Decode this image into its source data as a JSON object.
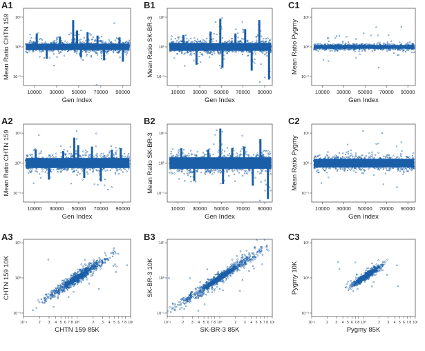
{
  "colors": {
    "points": "#1a5ea8",
    "axis": "#555555",
    "text": "#222222"
  },
  "chart_data": [
    {
      "id": "A1",
      "type": "scatter",
      "panel_label": "A1",
      "xlabel": "Gen Index",
      "ylabel": "Mean Ratio CHTN 159",
      "xticks": [
        "10000",
        "30000",
        "50000",
        "70000",
        "90000"
      ],
      "xtick_values": [
        10000,
        30000,
        50000,
        70000,
        90000
      ],
      "yticks": [
        "10⁻¹",
        "10⁰",
        "10¹"
      ],
      "yscale": "log",
      "xlim": [
        0,
        97000
      ],
      "ylim": [
        -1.3,
        1.3
      ],
      "points": {
        "x": [
          2000,
          96000
        ],
        "y_center": 0,
        "spread": 0.09
      },
      "spikes": [
        [
          12000,
          0.45
        ],
        [
          21000,
          -0.4
        ],
        [
          33000,
          0.35
        ],
        [
          45000,
          0.9
        ],
        [
          48500,
          0.55
        ],
        [
          52000,
          -0.35
        ],
        [
          58000,
          0.5
        ],
        [
          67000,
          0.38
        ],
        [
          73000,
          -0.45
        ],
        [
          87000,
          0.32
        ],
        [
          90000,
          -0.5
        ]
      ]
    },
    {
      "id": "B1",
      "type": "scatter",
      "panel_label": "B1",
      "xlabel": "Gen Index",
      "ylabel": "Mean Ratio SK-BR-3",
      "xticks": [
        "10000",
        "30000",
        "50000",
        "70000",
        "90000"
      ],
      "xtick_values": [
        10000,
        30000,
        50000,
        70000,
        90000
      ],
      "yticks": [
        "10⁻¹",
        "10⁰",
        "10¹"
      ],
      "yscale": "log",
      "xlim": [
        0,
        97000
      ],
      "ylim": [
        -1.3,
        1.3
      ],
      "points": {
        "x": [
          2000,
          96000
        ],
        "y_center": 0,
        "spread": 0.11
      },
      "spikes": [
        [
          15000,
          0.4
        ],
        [
          27000,
          -0.6
        ],
        [
          40000,
          0.5
        ],
        [
          49000,
          0.95
        ],
        [
          51000,
          -0.7
        ],
        [
          63000,
          0.45
        ],
        [
          72000,
          0.6
        ],
        [
          78000,
          -0.8
        ],
        [
          85000,
          0.9
        ],
        [
          94000,
          -1.1
        ]
      ]
    },
    {
      "id": "C1",
      "type": "scatter",
      "panel_label": "C1",
      "xlabel": "Gen Index",
      "ylabel": "Mean Ratio Pygmy",
      "xticks": [
        "10000",
        "30000",
        "50000",
        "70000",
        "90000"
      ],
      "xtick_values": [
        10000,
        30000,
        50000,
        70000,
        90000
      ],
      "yticks": [
        "10⁻¹",
        "10⁰",
        "10¹"
      ],
      "yscale": "log",
      "xlim": [
        0,
        97000
      ],
      "ylim": [
        -1.3,
        1.3
      ],
      "points": {
        "x": [
          2000,
          96000
        ],
        "y_center": 0,
        "spread": 0.05
      },
      "spikes": []
    },
    {
      "id": "A2",
      "type": "scatter",
      "panel_label": "A2",
      "xlabel": "Gen Index",
      "ylabel": "Mean Ratio CHTN 159",
      "xticks": [
        "10000",
        "30000",
        "50000",
        "70000",
        "90000"
      ],
      "xtick_values": [
        10000,
        30000,
        50000,
        70000,
        90000
      ],
      "yticks": [
        "10⁻¹",
        "10⁰",
        "10¹"
      ],
      "yscale": "log",
      "xlim": [
        0,
        97000
      ],
      "ylim": [
        -1.3,
        1.3
      ],
      "points": {
        "x": [
          2000,
          96000
        ],
        "y_center": 0,
        "spread": 0.14
      },
      "spikes": [
        [
          11000,
          0.45
        ],
        [
          23000,
          -0.55
        ],
        [
          36000,
          0.4
        ],
        [
          46000,
          0.85
        ],
        [
          49500,
          0.6
        ],
        [
          55000,
          -0.5
        ],
        [
          62000,
          0.55
        ],
        [
          70000,
          -0.6
        ],
        [
          80000,
          0.45
        ],
        [
          88000,
          0.5
        ]
      ]
    },
    {
      "id": "B2",
      "type": "scatter",
      "panel_label": "B2",
      "xlabel": "Gen Index",
      "ylabel": "Mean Ratio SK-BR-3",
      "xticks": [
        "10000",
        "30000",
        "50000",
        "70000",
        "90000"
      ],
      "xtick_values": [
        10000,
        30000,
        50000,
        70000,
        90000
      ],
      "yticks": [
        "10⁻¹",
        "10⁰",
        "10¹"
      ],
      "yscale": "log",
      "xlim": [
        0,
        97000
      ],
      "ylim": [
        -1.3,
        1.3
      ],
      "points": {
        "x": [
          2000,
          96000
        ],
        "y_center": 0,
        "spread": 0.16
      },
      "spikes": [
        [
          13000,
          0.5
        ],
        [
          25000,
          -0.6
        ],
        [
          38000,
          0.45
        ],
        [
          49000,
          1.15
        ],
        [
          51500,
          -0.7
        ],
        [
          60000,
          0.5
        ],
        [
          71000,
          0.55
        ],
        [
          79000,
          -0.75
        ],
        [
          86000,
          0.8
        ],
        [
          93000,
          -1.2
        ]
      ]
    },
    {
      "id": "C2",
      "type": "scatter",
      "panel_label": "C2",
      "xlabel": "Gen Index",
      "ylabel": "Mean Ratio Pygmy",
      "xticks": [
        "10000",
        "30000",
        "50000",
        "70000",
        "90000"
      ],
      "xtick_values": [
        10000,
        30000,
        50000,
        70000,
        90000
      ],
      "yticks": [
        "10⁻¹",
        "10⁰",
        "10¹"
      ],
      "yscale": "log",
      "xlim": [
        0,
        97000
      ],
      "ylim": [
        -1.3,
        1.3
      ],
      "points": {
        "x": [
          2000,
          96000
        ],
        "y_center": 0,
        "spread": 0.12
      },
      "spikes": []
    },
    {
      "id": "A3",
      "type": "scatter",
      "panel_label": "A3",
      "xlabel": "CHTN 159 85K",
      "ylabel": "CHTN 159 10K",
      "xticks": [
        "10⁻¹",
        "2",
        "3",
        "4",
        "5",
        "6",
        "7",
        "8",
        "10⁰",
        "2",
        "3",
        "4",
        "5",
        "6",
        "7",
        "8",
        "10¹"
      ],
      "yticks": [
        "10⁻¹",
        "10⁰",
        "10¹"
      ],
      "xscale": "log",
      "yscale": "log",
      "xlim": [
        -1,
        1
      ],
      "ylim": [
        -1.1,
        1.1
      ],
      "cloud": {
        "center": [
          0.0,
          0.0
        ],
        "slope": 1.0,
        "spread": 0.08,
        "length": 0.55
      }
    },
    {
      "id": "B3",
      "type": "scatter",
      "panel_label": "B3",
      "xlabel": "SK-BR-3 85K",
      "ylabel": "SK-BR-3 10K",
      "xticks": [
        "10⁻¹",
        "2",
        "3",
        "4",
        "5",
        "6",
        "7",
        "8",
        "10⁰",
        "2",
        "3",
        "4",
        "5",
        "6",
        "7",
        "8",
        "10¹"
      ],
      "yticks": [
        "10⁻¹",
        "10⁰",
        "10¹"
      ],
      "xscale": "log",
      "yscale": "log",
      "xlim": [
        -1,
        1
      ],
      "ylim": [
        -1.1,
        1.1
      ],
      "cloud": {
        "center": [
          0.0,
          0.0
        ],
        "slope": 1.0,
        "spread": 0.08,
        "length": 0.85
      }
    },
    {
      "id": "C3",
      "type": "scatter",
      "panel_label": "C3",
      "xlabel": "Pygmy 85K",
      "ylabel": "Pygmy 10K",
      "xticks": [
        "10⁻¹",
        "2",
        "3",
        "4",
        "5",
        "6",
        "7",
        "8",
        "10⁰",
        "2",
        "3",
        "4",
        "5",
        "6",
        "7",
        "8",
        "10¹"
      ],
      "yticks": [
        "10⁻¹",
        "10⁰",
        "10¹"
      ],
      "xscale": "log",
      "yscale": "log",
      "xlim": [
        -1,
        1
      ],
      "ylim": [
        -1.1,
        1.1
      ],
      "cloud": {
        "center": [
          0.05,
          0.05
        ],
        "slope": 1.0,
        "spread": 0.05,
        "length": 0.25
      }
    }
  ]
}
